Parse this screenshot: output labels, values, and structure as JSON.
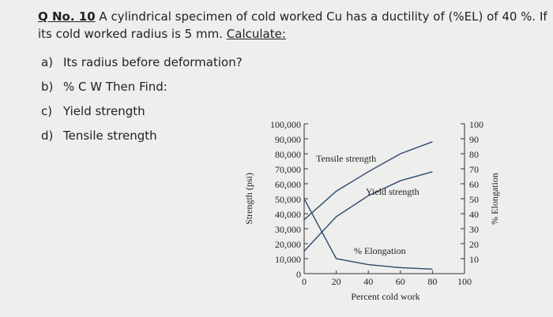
{
  "question": {
    "number": "Q No. 10",
    "text": "A cylindrical specimen of cold worked Cu has a ductility of (%EL) of 40 %. If its cold worked radius is 5 mm.",
    "calculate": "Calculate:",
    "items": [
      {
        "marker": "a)",
        "text": "Its radius before deformation?"
      },
      {
        "marker": "b)",
        "text": "% C W",
        "link": "Then Find:"
      },
      {
        "marker": "c)",
        "text": "Yield strength"
      },
      {
        "marker": "d)",
        "text": "Tensile strength"
      }
    ]
  },
  "chart_data": {
    "type": "line",
    "xlabel": "Percent cold work",
    "ylabel": "Strength (psi)",
    "y2label": "% Elongation",
    "x": [
      0,
      20,
      40,
      60,
      80
    ],
    "series": [
      {
        "name": "Tensile strength",
        "color": "#2c4a6b",
        "values": [
          36000,
          55000,
          68000,
          80000,
          88000
        ]
      },
      {
        "name": "Yield strength",
        "color": "#2c4a6b",
        "values": [
          15000,
          38000,
          52000,
          62000,
          68000
        ]
      },
      {
        "name": "% Elongation",
        "color": "#2c4a6b",
        "axis": "y2",
        "values": [
          50,
          10,
          6,
          4,
          3
        ]
      }
    ],
    "xlim": [
      0,
      100
    ],
    "xticks": [
      0,
      20,
      40,
      60,
      80,
      100
    ],
    "ylim": [
      0,
      100000
    ],
    "yticks": [
      0,
      {
        "value": 10000,
        "label": "10,000"
      },
      {
        "value": 20000,
        "label": "20,000"
      },
      {
        "value": 30000,
        "label": "30,000"
      },
      {
        "value": 40000,
        "label": "40,000"
      },
      {
        "value": 50000,
        "label": "50,000"
      },
      {
        "value": 60000,
        "label": "60,000"
      },
      {
        "value": 70000,
        "label": "70,000"
      },
      {
        "value": 80000,
        "label": "80,000"
      },
      {
        "value": 90000,
        "label": "90,000"
      },
      {
        "value": 100000,
        "label": "100,000"
      }
    ],
    "y2lim": [
      0,
      100
    ],
    "y2ticks": [
      10,
      20,
      30,
      40,
      50,
      60,
      70,
      80,
      90,
      100
    ]
  }
}
